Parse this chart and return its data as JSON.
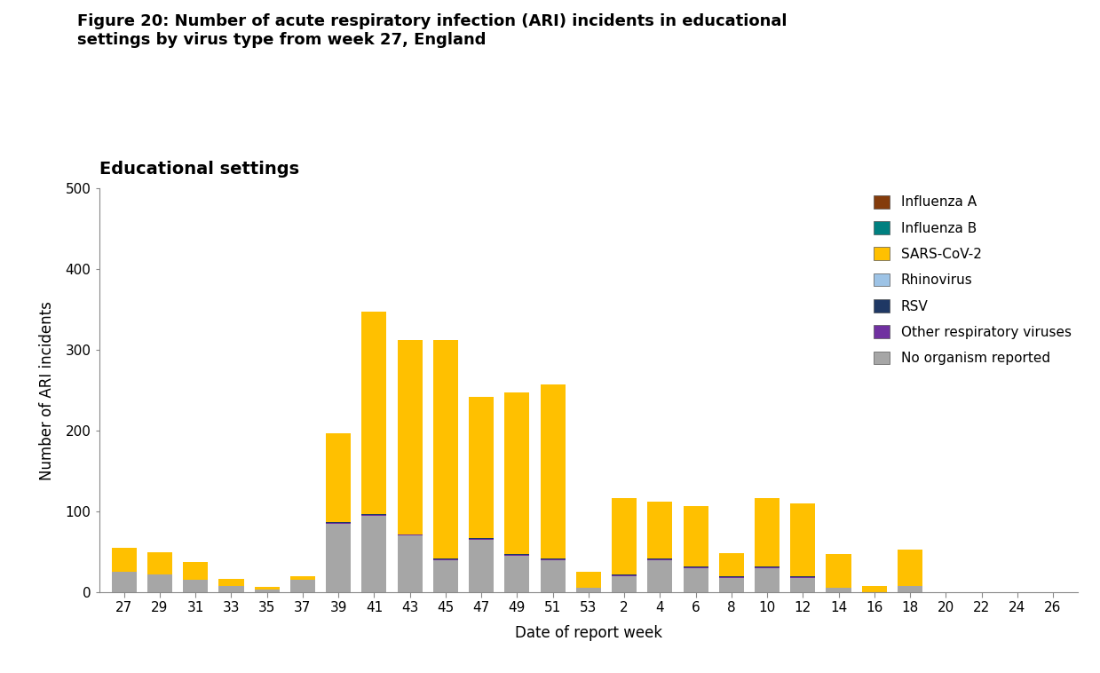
{
  "title": "Figure 20: Number of acute respiratory infection (ARI) incidents in educational\nsettings by virus type from week 27, England",
  "subtitle": "Educational settings",
  "xlabel": "Date of report week",
  "ylabel": "Number of ARI incidents",
  "ylim": [
    0,
    500
  ],
  "yticks": [
    0,
    100,
    200,
    300,
    400,
    500
  ],
  "xtick_labels": [
    "27",
    "29",
    "31",
    "33",
    "35",
    "37",
    "39",
    "41",
    "43",
    "45",
    "47",
    "49",
    "51",
    "53",
    "2",
    "4",
    "6",
    "8",
    "10",
    "12",
    "14",
    "16",
    "18",
    "20",
    "22",
    "24",
    "26"
  ],
  "background_color": "#ffffff",
  "series": {
    "No organism reported": {
      "color": "#a6a6a6",
      "values": [
        25,
        22,
        15,
        8,
        3,
        15,
        85,
        95,
        70,
        40,
        65,
        45,
        40,
        5,
        20,
        40,
        30,
        18,
        30,
        18,
        5,
        0,
        8,
        0,
        0,
        0,
        0
      ]
    },
    "Other respiratory viruses": {
      "color": "#7030a0",
      "values": [
        0,
        0,
        0,
        0,
        0,
        0,
        1,
        1,
        1,
        1,
        1,
        1,
        1,
        0,
        1,
        1,
        1,
        1,
        1,
        1,
        0,
        0,
        0,
        0,
        0,
        0,
        0
      ]
    },
    "RSV": {
      "color": "#1f3864",
      "values": [
        0,
        0,
        0,
        0,
        0,
        0,
        1,
        1,
        1,
        1,
        1,
        1,
        1,
        0,
        1,
        1,
        1,
        1,
        1,
        1,
        0,
        0,
        0,
        0,
        0,
        0,
        0
      ]
    },
    "Rhinovirus": {
      "color": "#9dc3e6",
      "values": [
        0,
        0,
        0,
        0,
        0,
        0,
        0,
        0,
        0,
        0,
        0,
        0,
        0,
        0,
        0,
        0,
        0,
        0,
        0,
        0,
        0,
        0,
        0,
        0,
        0,
        0,
        0
      ]
    },
    "SARS-CoV-2": {
      "color": "#ffc000",
      "values": [
        30,
        28,
        22,
        8,
        4,
        5,
        110,
        250,
        240,
        270,
        175,
        200,
        215,
        20,
        95,
        70,
        75,
        28,
        85,
        90,
        42,
        8,
        45,
        0,
        0,
        0,
        0
      ]
    },
    "Influenza B": {
      "color": "#008080",
      "values": [
        0,
        0,
        0,
        0,
        0,
        0,
        0,
        0,
        0,
        0,
        0,
        0,
        0,
        0,
        0,
        0,
        0,
        0,
        0,
        0,
        0,
        0,
        0,
        0,
        0,
        0,
        0
      ]
    },
    "Influenza A": {
      "color": "#843c0c",
      "values": [
        0,
        0,
        0,
        0,
        0,
        0,
        0,
        0,
        0,
        0,
        0,
        0,
        0,
        0,
        0,
        0,
        0,
        0,
        0,
        0,
        0,
        0,
        0,
        0,
        0,
        0,
        0
      ]
    }
  },
  "legend_order": [
    "Influenza A",
    "Influenza B",
    "SARS-CoV-2",
    "Rhinovirus",
    "RSV",
    "Other respiratory viruses",
    "No organism reported"
  ],
  "legend_colors": {
    "Influenza A": "#843c0c",
    "Influenza B": "#008080",
    "SARS-CoV-2": "#ffc000",
    "Rhinovirus": "#9dc3e6",
    "RSV": "#1f3864",
    "Other respiratory viruses": "#7030a0",
    "No organism reported": "#a6a6a6"
  },
  "title_fontsize": 13,
  "subtitle_fontsize": 14,
  "axis_label_fontsize": 12,
  "tick_fontsize": 11
}
